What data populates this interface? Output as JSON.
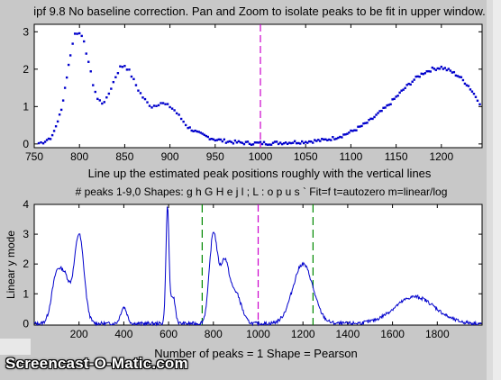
{
  "window": {
    "title_line": "ipf 9.8 No baseline correction. Pan and Zoom to isolate peaks to be fit in upper window.",
    "mid_line1": "Line up the estimated peak positions roughly with the vertical lines",
    "mid_line2": "# peaks 1-9,0   Shapes: g h G H e j l ; L : o p u s `   Fit=f   t=autozero   m=linear/log",
    "bottom_line": "Number of peaks = 1    Shape = Pearson",
    "ylabel_lower": "Linear y mode",
    "watermark": "Screencast-O-Matic.com"
  },
  "colors": {
    "background": "#c8c8c8",
    "plot_bg": "#ffffff",
    "data": "#0000cc",
    "magenta_line": "#cc00cc",
    "green_line": "#008800"
  },
  "chart_data": [
    {
      "type": "scatter",
      "title": "ipf 9.8 No baseline correction. Pan and Zoom to isolate peaks to be fit in upper window.",
      "xlim": [
        750,
        1245
      ],
      "ylim": [
        -0.1,
        3.2
      ],
      "xticks": [
        750,
        800,
        850,
        900,
        950,
        1000,
        1050,
        1100,
        1150,
        1200
      ],
      "yticks": [
        0,
        1,
        2,
        3
      ],
      "markers": "dots",
      "vlines": [
        {
          "x": 1000,
          "style": "magenta-dash"
        }
      ],
      "series": [
        {
          "x": [
            755,
            760,
            770,
            780,
            790,
            795,
            800,
            805,
            810,
            815,
            820,
            825,
            830,
            835,
            840,
            845,
            850,
            855,
            860,
            865,
            870,
            875,
            880,
            885,
            890,
            895,
            900,
            905,
            910,
            915,
            920,
            930,
            940,
            950,
            960,
            970,
            980,
            990,
            1000,
            1010,
            1020,
            1030,
            1040,
            1050,
            1060,
            1070,
            1080,
            1090,
            1100,
            1110,
            1120,
            1130,
            1140,
            1150,
            1160,
            1170,
            1180,
            1190,
            1200,
            1210,
            1220,
            1230,
            1240,
            1245
          ],
          "y": [
            0.02,
            0.05,
            0.2,
            0.9,
            2.4,
            2.95,
            3.0,
            2.7,
            2.2,
            1.6,
            1.2,
            1.1,
            1.2,
            1.5,
            1.8,
            2.05,
            2.1,
            1.95,
            1.7,
            1.45,
            1.25,
            1.1,
            1.0,
            1.05,
            1.1,
            1.05,
            1.0,
            0.9,
            0.75,
            0.6,
            0.45,
            0.3,
            0.2,
            0.12,
            0.08,
            0.05,
            0.03,
            0.02,
            0.02,
            0.02,
            0.03,
            0.04,
            0.05,
            0.06,
            0.08,
            0.1,
            0.15,
            0.22,
            0.32,
            0.45,
            0.6,
            0.8,
            1.0,
            1.25,
            1.5,
            1.72,
            1.9,
            2.0,
            2.05,
            1.95,
            1.8,
            1.55,
            1.2,
            1.0
          ]
        }
      ]
    },
    {
      "type": "line",
      "ylabel": "Linear y mode",
      "xlim": [
        0,
        2000
      ],
      "ylim": [
        -0.05,
        4
      ],
      "xticks": [
        200,
        400,
        600,
        800,
        1000,
        1200,
        1400,
        1600,
        1800
      ],
      "yticks": [
        0,
        1,
        2,
        3,
        4
      ],
      "vlines": [
        {
          "x": 750,
          "style": "green-dash"
        },
        {
          "x": 1000,
          "style": "magenta-dash"
        },
        {
          "x": 1245,
          "style": "green-dash"
        }
      ],
      "peaks": [
        {
          "center": 100,
          "height": 1.6,
          "width": 22
        },
        {
          "center": 140,
          "height": 1.3,
          "width": 20
        },
        {
          "center": 200,
          "height": 3.0,
          "width": 22
        },
        {
          "center": 400,
          "height": 0.55,
          "width": 14
        },
        {
          "center": 595,
          "height": 3.9,
          "width": 7
        },
        {
          "center": 620,
          "height": 0.9,
          "width": 10
        },
        {
          "center": 800,
          "height": 3.0,
          "width": 18
        },
        {
          "center": 850,
          "height": 2.0,
          "width": 20
        },
        {
          "center": 900,
          "height": 1.0,
          "width": 25
        },
        {
          "center": 1200,
          "height": 2.0,
          "width": 45
        },
        {
          "center": 1700,
          "height": 0.9,
          "width": 90
        }
      ]
    }
  ]
}
